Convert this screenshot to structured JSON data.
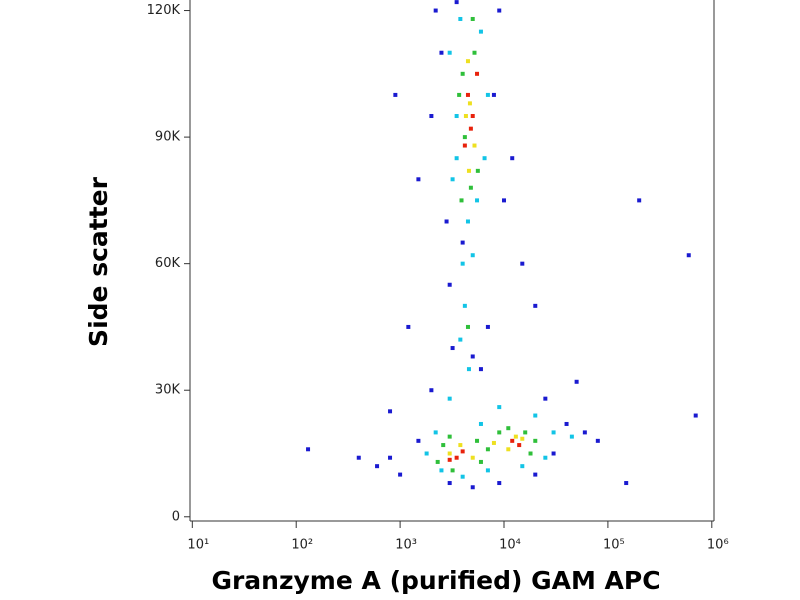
{
  "chart_data": {
    "type": "scatter",
    "x_label": "Granzyme A (purified) GAM APC",
    "y_label": "Side scatter",
    "xscale": "log",
    "xlim": [
      9.5,
      1050000
    ],
    "ylim": [
      -1000,
      122500
    ],
    "xticks": [
      {
        "value": 10,
        "label": "10¹"
      },
      {
        "value": 100,
        "label": "10²"
      },
      {
        "value": 1000,
        "label": "10³"
      },
      {
        "value": 10000,
        "label": "10⁴"
      },
      {
        "value": 100000,
        "label": "10⁵"
      },
      {
        "value": 1000000,
        "label": "10⁶"
      }
    ],
    "yticks": [
      0,
      {
        "value": 30000,
        "label": "30K"
      },
      {
        "value": 60000,
        "label": "60K"
      },
      {
        "value": 90000,
        "label": "90K"
      },
      {
        "value": 120000,
        "label": "120K"
      }
    ],
    "series": [
      {
        "color": "#1a1ad0",
        "x": [
          800,
          1200,
          1500,
          900,
          2500,
          2800,
          3000,
          3200,
          2000,
          1500,
          800,
          600,
          1000,
          25000,
          40000,
          60000,
          80000,
          30000,
          20000,
          9000,
          5000,
          3000,
          15000,
          20000,
          10000,
          8000,
          12000,
          600000,
          200000,
          700000,
          150000,
          130,
          400,
          7000,
          6000,
          2200,
          3500,
          9000,
          50000,
          2000,
          4000,
          5000
        ],
        "values": [
          25000,
          45000,
          80000,
          100000,
          110000,
          70000,
          55000,
          40000,
          30000,
          18000,
          14000,
          12000,
          10000,
          28000,
          22000,
          20000,
          18000,
          15000,
          10000,
          8000,
          7000,
          8000,
          60000,
          50000,
          75000,
          100000,
          85000,
          62000,
          75000,
          24000,
          8000,
          16000,
          14000,
          45000,
          35000,
          120000,
          122000,
          120000,
          32000,
          95000,
          65000,
          38000
        ]
      },
      {
        "color": "#12c4e6",
        "x": [
          3000,
          3500,
          3200,
          4500,
          5500,
          6500,
          7000,
          6000,
          3800,
          4000,
          4200,
          3800,
          4600,
          3000,
          2200,
          1800,
          2500,
          4000,
          7000,
          20000,
          30000,
          45000,
          25000,
          9000,
          6000,
          15000,
          3500,
          5000
        ],
        "values": [
          110000,
          95000,
          80000,
          70000,
          75000,
          85000,
          100000,
          115000,
          118000,
          60000,
          50000,
          42000,
          35000,
          28000,
          20000,
          15000,
          11000,
          9500,
          11000,
          24000,
          20000,
          19000,
          14000,
          26000,
          22000,
          12000,
          85000,
          62000
        ]
      },
      {
        "color": "#2fbf3a",
        "x": [
          4000,
          4200,
          3700,
          5200,
          5600,
          4800,
          3900,
          5000,
          2600,
          3000,
          5500,
          7000,
          9000,
          11000,
          16000,
          20000,
          18000,
          6000,
          3200,
          2300,
          4500
        ],
        "values": [
          105000,
          90000,
          100000,
          110000,
          82000,
          78000,
          75000,
          118000,
          17000,
          19000,
          18000,
          16000,
          20000,
          21000,
          20000,
          18000,
          15000,
          13000,
          11000,
          13000,
          45000
        ]
      },
      {
        "color": "#eee020",
        "x": [
          4500,
          4700,
          4300,
          5200,
          4600,
          3000,
          3800,
          5000,
          8000,
          13000,
          11000,
          15000
        ],
        "values": [
          108000,
          98000,
          95000,
          88000,
          82000,
          15000,
          17000,
          14000,
          17500,
          19000,
          16000,
          18500
        ]
      },
      {
        "color": "#e8220c",
        "x": [
          4500,
          5000,
          4200,
          5500,
          3500,
          4000,
          3000,
          12000,
          14000,
          4800
        ],
        "values": [
          100000,
          95000,
          88000,
          105000,
          14000,
          15500,
          13500,
          18000,
          17000,
          92000
        ]
      }
    ]
  }
}
